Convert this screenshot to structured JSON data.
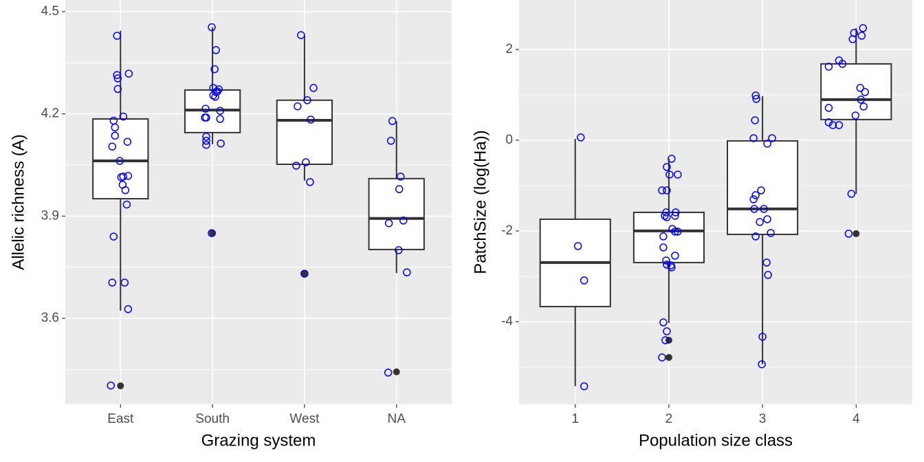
{
  "chart_data": [
    {
      "type": "box",
      "x_label": "Grazing system",
      "y_label": "Allelic richness (A)",
      "xlim": [
        0.4,
        4.6
      ],
      "ylim": [
        3.348,
        4.534
      ],
      "xticks": [
        {
          "value": 1,
          "label": "East"
        },
        {
          "value": 2,
          "label": "South"
        },
        {
          "value": 3,
          "label": "West"
        },
        {
          "value": 4,
          "label": "NA"
        }
      ],
      "yticks": [
        3.6,
        3.9,
        4.2,
        4.5
      ],
      "yticks_minor": [
        3.45,
        3.75,
        4.05,
        4.35
      ],
      "grid": true,
      "boxes": [
        {
          "x": 1,
          "low": 3.622,
          "q1": 3.951,
          "median": 4.062,
          "q3": 4.185,
          "high": 4.444,
          "outliers": [
            3.402
          ]
        },
        {
          "x": 2,
          "low": 4.111,
          "q1": 4.145,
          "median": 4.211,
          "q3": 4.27,
          "high": 4.454,
          "outliers": [
            3.85
          ]
        },
        {
          "x": 3,
          "low": 4.004,
          "q1": 4.052,
          "median": 4.181,
          "q3": 4.24,
          "high": 4.429,
          "outliers": [
            3.731
          ]
        },
        {
          "x": 4,
          "low": 3.733,
          "q1": 3.802,
          "median": 3.893,
          "q3": 4.01,
          "high": 4.178,
          "outliers": [
            3.443
          ]
        }
      ],
      "points": {
        "color": "#0000ff",
        "x": [
          0.962,
          0.962,
          0.97,
          1.09,
          0.97,
          1.03,
          0.925,
          0.94,
          0.94,
          1.075,
          0.91,
          0.992,
          1.03,
          1.083,
          1.008,
          1.023,
          1.053,
          1.068,
          0.925,
          0.91,
          1.045,
          1.083,
          0.895,
          1.992,
          2.038,
          2.023,
          2.008,
          2.068,
          2.038,
          2.008,
          2.053,
          2.03,
          2.083,
          1.925,
          1.932,
          1.917,
          2.083,
          1.932,
          1.932,
          1.932,
          2.09,
          1.992,
          2.962,
          3.098,
          3.03,
          2.925,
          3.068,
          2.91,
          3.015,
          3.06,
          3.0,
          3.955,
          3.94,
          4.045,
          4.03,
          4.075,
          3.917,
          4.023,
          4.113,
          3.91
        ],
        "y": [
          4.429,
          4.314,
          4.304,
          4.318,
          4.273,
          4.192,
          4.18,
          4.16,
          4.136,
          4.118,
          4.104,
          4.062,
          4.016,
          4.018,
          4.014,
          3.992,
          3.976,
          3.934,
          3.84,
          3.705,
          3.705,
          3.627,
          3.403,
          4.454,
          4.387,
          4.331,
          4.276,
          4.272,
          4.264,
          4.254,
          4.266,
          4.25,
          4.209,
          4.215,
          4.189,
          4.189,
          4.185,
          4.133,
          4.121,
          4.109,
          4.113,
          3.85,
          4.431,
          4.276,
          4.24,
          4.222,
          4.183,
          4.048,
          4.058,
          4.0,
          3.731,
          4.179,
          4.121,
          4.016,
          3.979,
          3.887,
          3.879,
          3.8,
          3.735,
          3.441
        ]
      }
    },
    {
      "type": "box",
      "x_label": "Population size class",
      "y_label": "PatchSize (log(Ha))",
      "xlim": [
        0.4,
        4.6
      ],
      "ylim": [
        -5.82,
        3.09
      ],
      "xticks": [
        1,
        2,
        3,
        4
      ],
      "yticks": [
        -4,
        -2,
        0,
        2
      ],
      "yticks_minor": [
        -5,
        -3,
        -1,
        1
      ],
      "grid": true,
      "boxes": [
        {
          "x": 1,
          "low": -5.42,
          "q1": -3.667,
          "median": -2.697,
          "q3": -1.742,
          "high": 0.03,
          "outliers": []
        },
        {
          "x": 2,
          "low": -4.03,
          "q1": -2.697,
          "median": -2.0,
          "q3": -1.591,
          "high": -0.409,
          "outliers": [
            -4.409,
            -4.788
          ]
        },
        {
          "x": 3,
          "low": -4.94,
          "q1": -2.076,
          "median": -1.515,
          "q3": -0.015,
          "high": 0.97,
          "outliers": []
        },
        {
          "x": 4,
          "low": -1.182,
          "q1": 0.455,
          "median": 0.894,
          "q3": 1.682,
          "high": 2.47,
          "outliers": [
            -2.061
          ]
        }
      ],
      "points": {
        "color": "#0000ff",
        "x": [
          1.059,
          1.029,
          1.095,
          1.095,
          2.029,
          1.978,
          2.007,
          2.095,
          1.978,
          1.927,
          1.971,
          1.956,
          2.073,
          1.978,
          2.066,
          2.037,
          2.066,
          2.095,
          1.941,
          1.941,
          2.066,
          1.971,
          1.978,
          2.029,
          2.022,
          1.941,
          1.978,
          1.963,
          1.927,
          2.927,
          2.934,
          2.92,
          2.905,
          3.102,
          3.051,
          2.985,
          2.927,
          2.905,
          2.912,
          3.015,
          2.971,
          3.051,
          2.927,
          3.088,
          3.044,
          3.059,
          3.0,
          2.993,
          4.073,
          3.978,
          4.059,
          3.963,
          3.707,
          3.817,
          3.854,
          4.044,
          4.095,
          4.051,
          3.707,
          4.08,
          3.993,
          3.707,
          3.751,
          3.817,
          3.949,
          3.92
        ],
        "y": [
          0.061,
          -2.333,
          -3.091,
          -5.424,
          -0.409,
          -0.591,
          -0.758,
          -0.758,
          -1.106,
          -1.106,
          -1.591,
          -1.667,
          -1.591,
          -1.697,
          -1.667,
          -1.955,
          -2.015,
          -2.015,
          -2.121,
          -2.364,
          -2.545,
          -2.652,
          -2.742,
          -2.803,
          -2.758,
          -4.015,
          -4.212,
          -4.409,
          -4.788,
          0.985,
          0.909,
          0.439,
          0.045,
          0.045,
          -0.076,
          -1.106,
          -1.212,
          -1.303,
          -1.515,
          -1.515,
          -1.803,
          -1.742,
          -2.121,
          -2.045,
          -2.697,
          -2.97,
          -4.333,
          -4.939,
          2.47,
          2.364,
          2.303,
          2.227,
          1.621,
          1.758,
          1.682,
          1.152,
          1.061,
          0.894,
          0.712,
          0.742,
          0.545,
          0.394,
          0.333,
          0.333,
          -1.182,
          -2.061
        ]
      }
    }
  ]
}
